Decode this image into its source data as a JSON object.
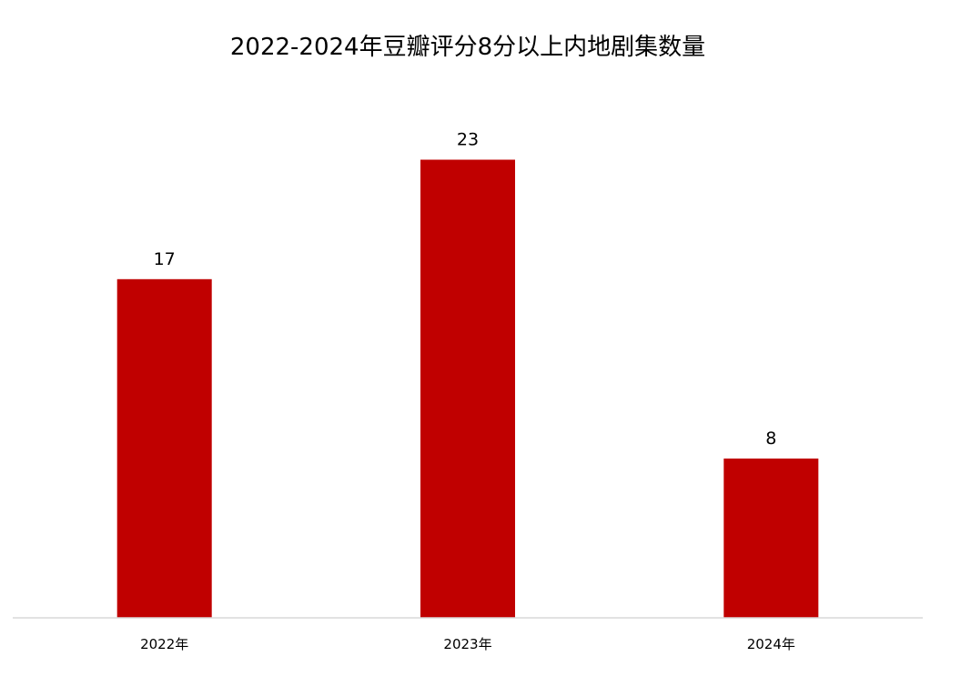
{
  "chart_data": {
    "type": "bar",
    "title": "2022-2024年豆瓣评分8分以上内地剧集数量",
    "categories": [
      "2022年",
      "2023年",
      "2024年"
    ],
    "values": [
      17,
      23,
      8
    ],
    "xlabel": "",
    "ylabel": "",
    "ylim": [
      0,
      28
    ],
    "grid": false,
    "legend": "none",
    "data_labels": true,
    "colors": {
      "bar": "#C00000",
      "axis": "#D9D9D9",
      "text": "#000000"
    }
  }
}
